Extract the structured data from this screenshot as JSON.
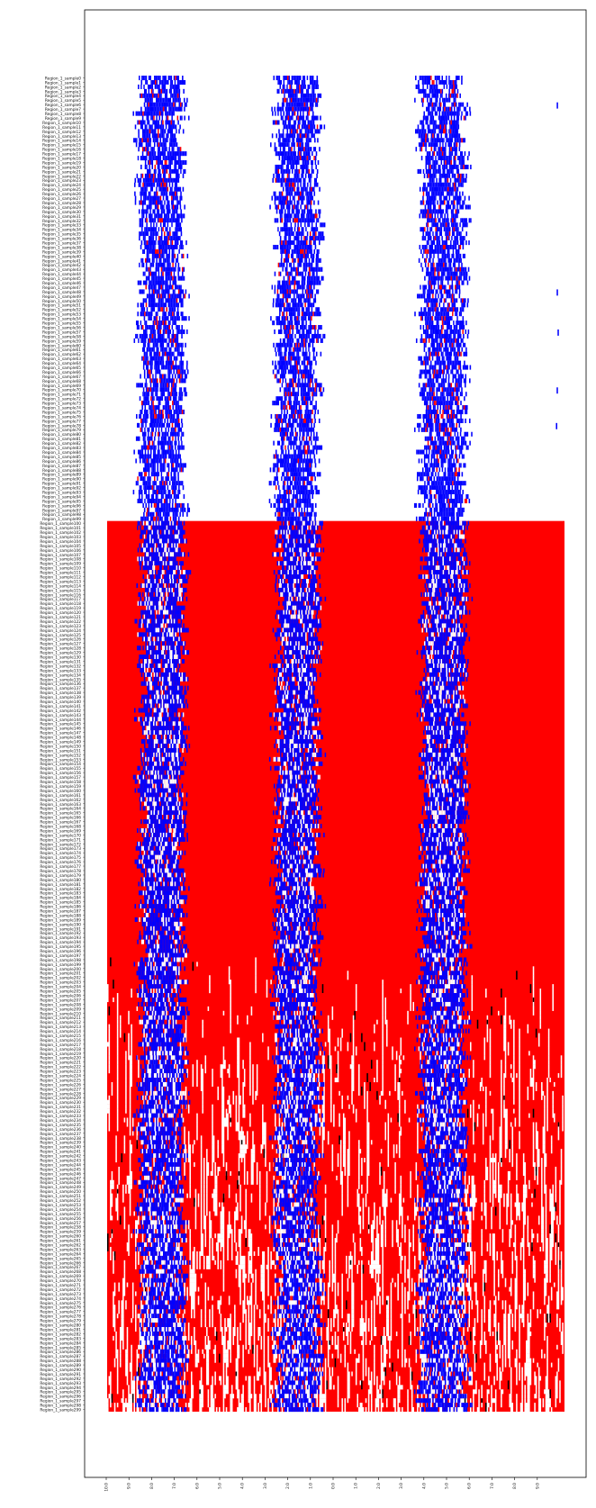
{
  "chart_data": {
    "type": "heatmap",
    "title": "",
    "xlabel": "",
    "ylabel": "",
    "row_label_prefix": "Region_1_sample",
    "row_count": 300,
    "row_labels_note": "Rows labeled Region_1_sample0 through Region_1_sample299, top to bottom",
    "x_tick_labels": [
      "10.0",
      "9.0",
      "8.0",
      "7.0",
      "6.0",
      "5.0",
      "4.0",
      "3.0",
      "2.0",
      "1.0",
      "0.0",
      "1.0",
      "2.0",
      "3.0",
      "4.0",
      "5.0",
      "6.0",
      "7.0",
      "8.0",
      "9.0"
    ],
    "x_range": [
      -10,
      10
    ],
    "grid": false,
    "legend": "none",
    "colors": {
      "background_region": "#ff0000",
      "band": "#0000ff",
      "gap": "#ffffff",
      "speck": "#000000",
      "outside": "#ffffff"
    },
    "bands": [
      {
        "center": -7.6,
        "half_width": 0.85
      },
      {
        "center": -1.7,
        "half_width": 0.8
      },
      {
        "center": 4.7,
        "half_width": 0.85
      }
    ],
    "red_region": {
      "start_row": 100,
      "end_row": 299
    },
    "fragmented_region": {
      "start_row": 198,
      "end_row": 299
    }
  }
}
